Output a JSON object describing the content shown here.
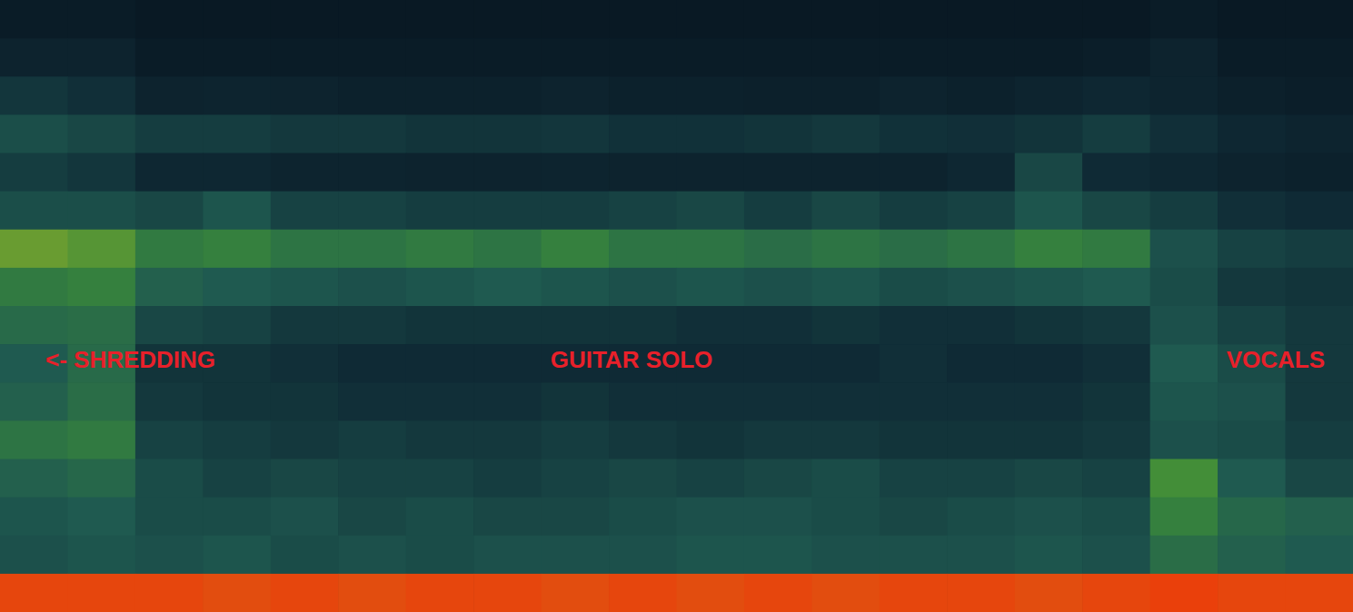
{
  "chart_data": {
    "type": "heatmap",
    "tick_labels": false,
    "color_range": [
      0,
      10
    ],
    "cells": [
      [
        1.0,
        1.0,
        0.8,
        0.8,
        0.8,
        0.8,
        0.8,
        0.8,
        0.8,
        0.8,
        0.8,
        0.8,
        0.8,
        0.8,
        0.8,
        0.8,
        0.8,
        1.0,
        0.8,
        0.8
      ],
      [
        1.5,
        1.5,
        1.0,
        1.0,
        1.0,
        1.0,
        1.0,
        1.0,
        1.0,
        1.0,
        1.0,
        1.0,
        1.0,
        1.0,
        1.0,
        1.0,
        1.2,
        1.5,
        1.0,
        1.0
      ],
      [
        2.5,
        2.2,
        1.5,
        1.6,
        1.5,
        1.4,
        1.4,
        1.4,
        1.5,
        1.4,
        1.4,
        1.3,
        1.3,
        1.5,
        1.4,
        1.6,
        1.8,
        1.6,
        1.3,
        1.2
      ],
      [
        3.5,
        3.2,
        2.8,
        2.8,
        2.6,
        2.6,
        2.4,
        2.4,
        2.5,
        2.3,
        2.3,
        2.4,
        2.6,
        2.3,
        2.2,
        2.4,
        2.8,
        2.2,
        1.8,
        1.6
      ],
      [
        2.8,
        2.5,
        1.8,
        1.8,
        1.6,
        1.6,
        1.5,
        1.5,
        1.6,
        1.5,
        1.5,
        1.5,
        1.5,
        1.5,
        1.8,
        3.2,
        2.0,
        1.8,
        1.5,
        1.4
      ],
      [
        3.5,
        3.5,
        3.2,
        3.8,
        3.0,
        3.0,
        2.8,
        2.8,
        2.8,
        3.0,
        3.2,
        2.8,
        3.2,
        2.8,
        3.0,
        3.8,
        3.2,
        2.8,
        2.2,
        2.0
      ],
      [
        6.0,
        5.8,
        5.0,
        5.2,
        4.8,
        4.8,
        5.0,
        4.8,
        5.2,
        4.8,
        4.8,
        4.6,
        4.8,
        4.6,
        4.8,
        5.2,
        5.0,
        3.6,
        3.0,
        2.8
      ],
      [
        5.0,
        5.2,
        4.2,
        4.0,
        3.8,
        3.6,
        3.8,
        4.0,
        3.8,
        3.6,
        3.8,
        3.6,
        3.8,
        3.4,
        3.6,
        3.8,
        4.0,
        3.4,
        2.6,
        2.4
      ],
      [
        4.5,
        4.6,
        3.2,
        3.0,
        2.6,
        2.6,
        2.4,
        2.4,
        2.4,
        2.4,
        2.2,
        2.2,
        2.4,
        2.2,
        2.2,
        2.4,
        2.6,
        3.6,
        3.0,
        2.6
      ],
      [
        4.0,
        4.5,
        2.4,
        2.4,
        2.2,
        2.0,
        2.0,
        2.0,
        2.0,
        2.0,
        2.0,
        2.0,
        2.0,
        2.2,
        2.0,
        2.0,
        2.2,
        4.0,
        3.4,
        2.6
      ],
      [
        4.2,
        4.6,
        2.6,
        2.4,
        2.4,
        2.2,
        2.2,
        2.2,
        2.4,
        2.2,
        2.2,
        2.2,
        2.2,
        2.2,
        2.2,
        2.2,
        2.4,
        3.8,
        3.6,
        2.6
      ],
      [
        4.8,
        5.0,
        3.0,
        2.8,
        2.6,
        2.8,
        2.6,
        2.6,
        2.8,
        2.6,
        2.4,
        2.6,
        2.6,
        2.4,
        2.4,
        2.4,
        2.6,
        3.6,
        3.4,
        2.8
      ],
      [
        4.2,
        4.4,
        3.4,
        3.0,
        3.2,
        3.0,
        3.0,
        2.8,
        3.0,
        3.2,
        3.0,
        3.2,
        3.4,
        3.0,
        3.0,
        3.2,
        3.0,
        5.6,
        4.0,
        3.2
      ],
      [
        3.8,
        4.0,
        3.4,
        3.4,
        3.6,
        3.2,
        3.4,
        3.2,
        3.2,
        3.4,
        3.6,
        3.6,
        3.4,
        3.2,
        3.4,
        3.6,
        3.4,
        5.2,
        4.4,
        4.2
      ],
      [
        3.6,
        3.8,
        3.6,
        3.8,
        3.4,
        3.6,
        3.4,
        3.6,
        3.6,
        3.6,
        3.8,
        3.8,
        3.6,
        3.6,
        3.6,
        3.8,
        3.6,
        4.6,
        4.2,
        4.0
      ],
      [
        8.8,
        8.8,
        8.8,
        8.6,
        8.8,
        8.6,
        8.8,
        8.8,
        8.6,
        8.8,
        8.6,
        8.8,
        8.6,
        8.8,
        8.8,
        8.6,
        8.8,
        9.0,
        8.8,
        8.8
      ]
    ],
    "annotations": [
      {
        "text": "<- SHREDDING"
      },
      {
        "text": "GUITAR SOLO"
      },
      {
        "text": "VOCALS"
      }
    ]
  }
}
